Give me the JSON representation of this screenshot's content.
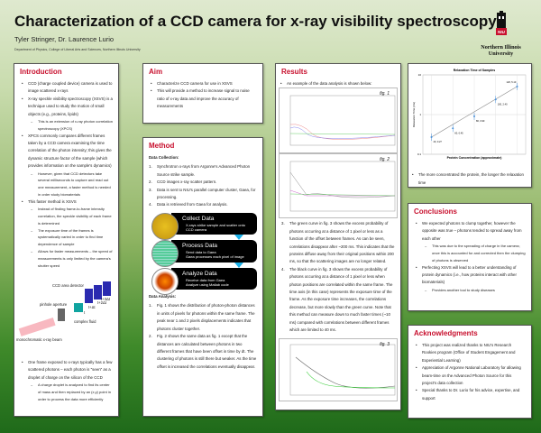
{
  "header": {
    "title": "Characterization of a CCD camera for x-ray visibility spectroscopy",
    "authors": "Tyler Stringer, Dr. Laurence Lurio",
    "department": "Department of Physics, College of Liberal Arts and Sciences, Northern Illinois University",
    "logo_text": "Northern Illinois University",
    "logo_badge": "NIU"
  },
  "intro": {
    "heading": "Introduction",
    "items": [
      {
        "t": "CCD (charge coupled device) camera is used to image scattered x-rays",
        "sub": false
      },
      {
        "t": "X-ray speckle visibility spectroscopy (XSVS) is a technique used to study the motion of small objects (e.g., proteins, lipids)",
        "sub": false
      },
      {
        "t": "This is an extension of x-ray photon correlation spectroscopy (XPCS)",
        "sub": true
      },
      {
        "t": "XPCS commonly compares different frames taken by a CCD camera examining the time correlation of the photon intensity; this gives the dynamic structure factor of the sample (which provides information on the sample's dynamics)",
        "sub": false
      },
      {
        "t": "However, given that CCD detectors take several milliseconds to capture and read out one measurement, a faster method is needed in order study biomaterials",
        "sub": true
      },
      {
        "t": "This faster method is XSVS",
        "sub": false
      },
      {
        "t": "Instead of finding frame-to-frame intensity correlation, the speckle visibility of each frame is determined",
        "sub": true
      },
      {
        "t": "The exposure time of the frames is systematically varied in order to find time dependence of sample",
        "sub": true
      },
      {
        "t": "Allows for faster measurements – the speed of measurements is only limited by the camera's shutter speed",
        "sub": true
      }
    ],
    "diagram": {
      "detector": "CCD area detector",
      "pinhole": "pinhole aperture",
      "fluid": "complex fluid",
      "beam": "monochromatic x-ray beam",
      "t0": "t",
      "t1": "t+Δt",
      "t2": "t+2Δt",
      "t3": "t+3Δt"
    },
    "items2": [
      {
        "t": "One frame exposed to x-rays typically has a few scattered photons – each photon is \"seen\" as a droplet of charge on the silicon of the CCD",
        "sub": false
      },
      {
        "t": "A charge droplet is analyzed to find its center of mass and then replaced by an (x,y) point in order to process the data more efficiently",
        "sub": true
      }
    ]
  },
  "aim": {
    "heading": "Aim",
    "items": [
      "Characterize CCD camera for use in XSVS",
      "This will provide a method to increase signal to noise ratio of x-ray data and improve the accuracy of measurements"
    ]
  },
  "method": {
    "heading": "Method",
    "collection_title": "Data Collection:",
    "collection": [
      "Synchrotron x-rays from Argonne's Advanced Photon Source strike sample.",
      "CCD images x-ray scatter pattern.",
      "Data is sent to NIU's parallel computer cluster, Gaea, for processing.",
      "Data is retrieved from Gaea for analysis."
    ],
    "flow": [
      {
        "title": "Collect Data",
        "items": [
          "X-rays strike sample and scatter onto CCD camera"
        ]
      },
      {
        "title": "Process Data",
        "items": [
          "Send data to Gaea",
          "Gaea processes each pixel of image"
        ]
      },
      {
        "title": "Analyze Data",
        "items": [
          "Receive data from Gaea",
          "Analyze using Matlab code"
        ]
      }
    ],
    "analysis_title": "Data Analysis:",
    "analysis": [
      "Fig. 1 shows the distribution of photon-photon distances in units of pixels for photons within the same frame.  The peak near 1 and 2 pixels displacements indicates that photons cluster together.",
      "Fig. 2 shows the same data as fig. 1 except that the distances are calculated between photons in two different frames that have been offset in time by dt. The clustering of photons is still there but weaker. As the time offset is increased the correlations eventually disappear."
    ]
  },
  "results": {
    "heading": "Results",
    "intro": "An example of the data analysis is shown below:",
    "fig1": "fig. 1",
    "fig2": "fig. 2",
    "fig3": "fig. 3",
    "items": [
      "The green curve in fig. 3 shows the excess probability of photons occurring at a distance of 1 pixel or less as a function of the offset between frames.  As can be seen, correlations disappear after ~200 ms.  This indicates that the proteins diffuse away from their original positions within 200 ms, so that the scattering images are no longer related.",
      "The black curve in fig. 3 shows the excess probability of photons occurring at a distance of 1 pixel or less when photon positions are correlated within the same frame. The time axis (in this case) represents the exposure time of the frame. As the exposure time increases, the correlations decrease, but more slowly than the green curve. Note that this method can measure down to much faster times (~10 ms) compared with correlations between different frames which are limited to 40 ms."
    ]
  },
  "relaxation": {
    "caption": "The more concentrated the protein, the longer the relaxation time"
  },
  "chart_data": {
    "type": "scatter",
    "title": "Relaxation Time of Samples",
    "xlabel": "Protein Concentration (approximate)",
    "ylabel": "Relaxation Time (ms)",
    "y_scale": "log",
    "ylim": [
      0.1,
      10
    ],
    "y_ticks": [
      "0.1",
      "1",
      "10"
    ],
    "grid": true,
    "trendline": true,
    "points": [
      {
        "x": 1,
        "y": 0.27,
        "label": "40, 0.27"
      },
      {
        "x": 2,
        "y": 0.45,
        "label": "60, 0.45"
      },
      {
        "x": 3,
        "y": 0.9,
        "label": "80, 0.90"
      },
      {
        "x": 4,
        "y": 2.4,
        "label": "100, 2.40"
      },
      {
        "x": 5,
        "y": 5.1,
        "label": "120, 5.10"
      }
    ]
  },
  "conclusions": {
    "heading": "Conclusions",
    "items": [
      {
        "t": "We expected photons to clump together, however the opposite was true – photons tended to spread away from each other",
        "sub": false
      },
      {
        "t": "This was due to the spreading of charge in the camera; once this is accounted for and corrected then the clumping of photons is observed",
        "sub": true
      },
      {
        "t": "Perfecting XSVS will lead to a better understanding of protein dynamics (i.e., how proteins interact with other biomaterials)",
        "sub": false
      },
      {
        "t": "Provides another tool to study diseases",
        "sub": true
      }
    ]
  },
  "ack": {
    "heading": "Acknowledgments",
    "items": [
      "This project was realized thanks to NIU's Research Rookies program (Office of Student Engagement and Experiential Learning)",
      "Appreciation of Argonne National Laboratory for allowing beam-time on the Advanced Photon Source for this project's data collection",
      "Special thanks to Dr. Lurio for his advice, expertise, and support"
    ]
  }
}
